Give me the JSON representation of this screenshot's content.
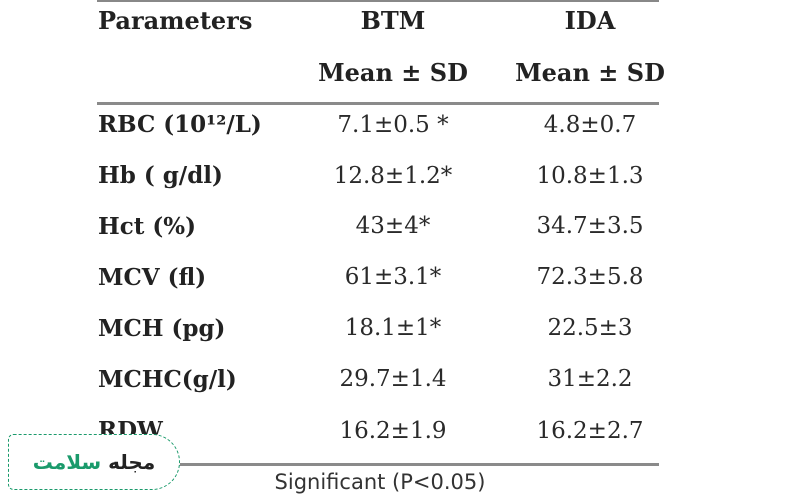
{
  "table": {
    "headers": {
      "parameters": "Parameters",
      "btm": "BTM",
      "ida": "IDA",
      "btm_sub": "Mean ± SD",
      "ida_sub": "Mean ± SD"
    },
    "rows": [
      {
        "param": "RBC (10¹²/L)",
        "btm": "7.1±0.5 *",
        "ida": "4.8±0.7"
      },
      {
        "param": "Hb ( g/dl)",
        "btm": "12.8±1.2*",
        "ida": "10.8±1.3"
      },
      {
        "param": "Hct (%)",
        "btm": "43±4*",
        "ida": "34.7±3.5"
      },
      {
        "param": "MCV (fl)",
        "btm": "61±3.1*",
        "ida": "72.3±5.8"
      },
      {
        "param": "MCH (pg)",
        "btm": "18.1±1*",
        "ida": "22.5±3"
      },
      {
        "param": "MCHC(g/l)",
        "btm": "29.7±1.4",
        "ida": "31±2.2"
      },
      {
        "param": "RDW",
        "btm": "16.2±1.9",
        "ida": "16.2±2.7"
      }
    ],
    "footnote": "Significant (P<0.05)"
  },
  "logo": {
    "text_dark": "مجله",
    "text_green": "سلامت",
    "color": "#1a9a6b"
  }
}
